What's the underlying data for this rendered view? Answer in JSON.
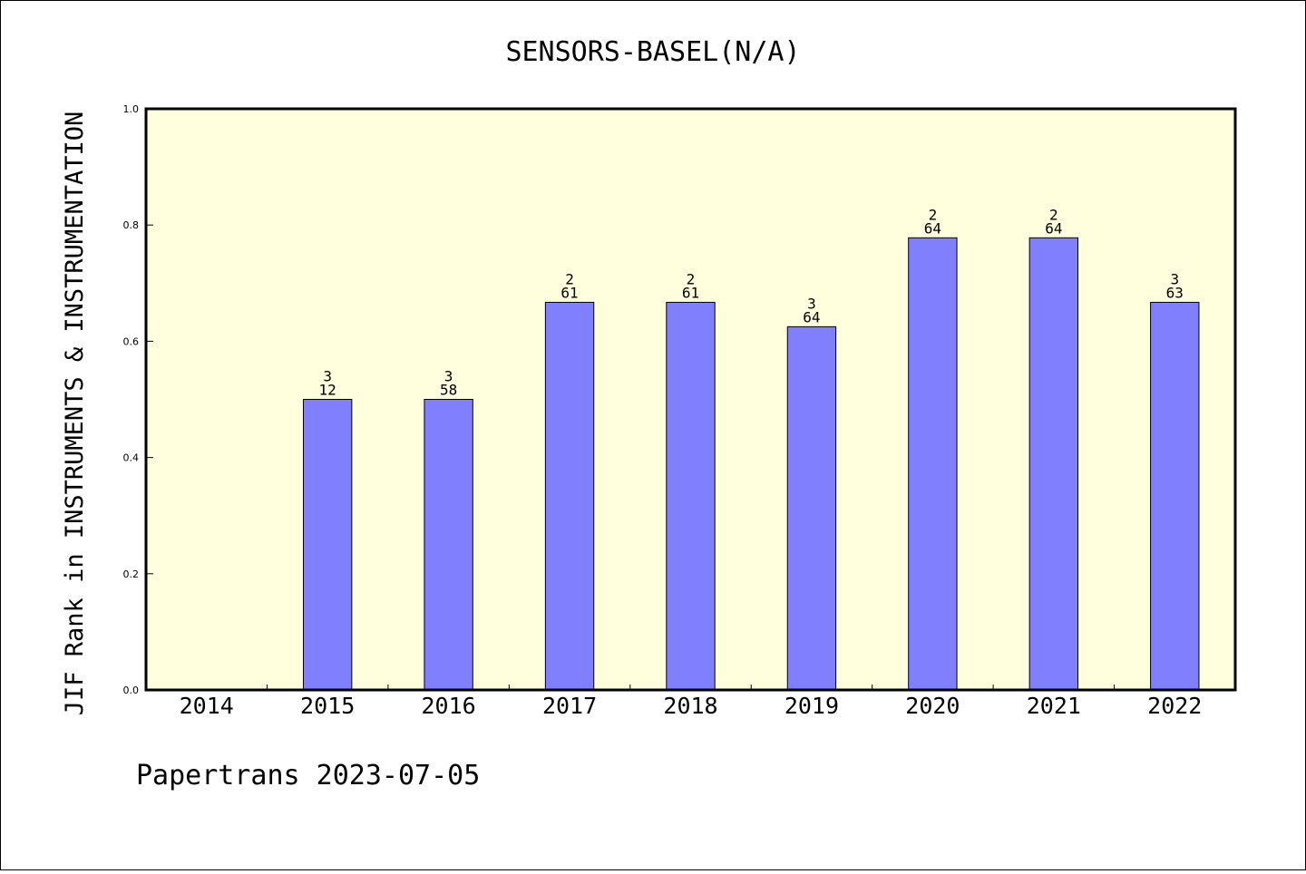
{
  "chart_data": {
    "type": "bar",
    "title": "SENSORS-BASEL(N/A)",
    "xlabel": "",
    "ylabel": "JIF Rank in INSTRUMENTS & INSTRUMENTATION",
    "categories": [
      "2014",
      "2015",
      "2016",
      "2017",
      "2018",
      "2019",
      "2020",
      "2021",
      "2022"
    ],
    "values": [
      null,
      0.5,
      0.5,
      0.667,
      0.667,
      0.625,
      0.778,
      0.778,
      0.667
    ],
    "bar_labels": [
      null,
      [
        "3",
        "12"
      ],
      [
        "3",
        "58"
      ],
      [
        "2",
        "61"
      ],
      [
        "2",
        "61"
      ],
      [
        "3",
        "64"
      ],
      [
        "2",
        "64"
      ],
      [
        "2",
        "64"
      ],
      [
        "3",
        "63"
      ]
    ],
    "ylim": [
      0,
      1.0
    ],
    "yticks": [
      "0.0",
      "0.2",
      "0.4",
      "0.6",
      "0.8",
      "1.0"
    ],
    "grid": false,
    "colors": {
      "plot_bg": "#ffffdd",
      "bar": "#8080ff",
      "axis": "#000000"
    }
  },
  "footer": "Papertrans 2023-07-05"
}
